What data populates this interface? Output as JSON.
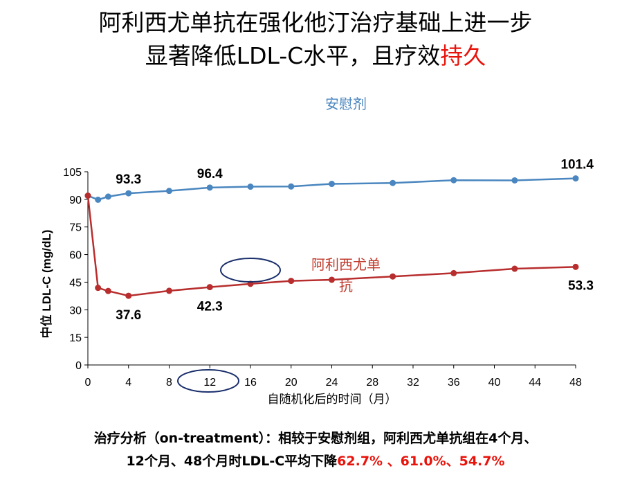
{
  "title": {
    "line1": "阿利西尤单抗在强化他汀治疗基础上进一步",
    "line2_main": "显著降低LDL-C水平，且疗效",
    "line2_highlight": "持久"
  },
  "chart_data": {
    "type": "line",
    "xlabel": "自随机化后的时间（月）",
    "ylabel": "中位 LDL-C (mg/dL)",
    "xlim": [
      0,
      48
    ],
    "ylim": [
      0,
      105
    ],
    "xticks": [
      0,
      4,
      8,
      12,
      16,
      20,
      24,
      28,
      32,
      36,
      40,
      44,
      48
    ],
    "yticks": [
      0,
      15,
      30,
      45,
      60,
      75,
      90,
      105
    ],
    "grid": false,
    "series": [
      {
        "name": "安慰剂",
        "color": "#4a86bf",
        "label_color": "#4a86bf",
        "x": [
          0,
          1,
          2,
          4,
          8,
          12,
          16,
          20,
          24,
          30,
          36,
          42,
          48
        ],
        "values": [
          92,
          89.8,
          91.5,
          93.3,
          94.6,
          96.4,
          96.9,
          97.0,
          98.4,
          98.9,
          100.4,
          100.3,
          101.4
        ]
      },
      {
        "name": "阿利西尤单抗",
        "name_lines": [
          "阿利西尤单",
          "抗"
        ],
        "color": "#b82d2d",
        "label_color": "#c0392b",
        "x": [
          0,
          1,
          2,
          4,
          8,
          12,
          16,
          20,
          24,
          30,
          36,
          42,
          48
        ],
        "values": [
          92,
          41.9,
          40.2,
          37.6,
          40.3,
          42.3,
          44.1,
          45.7,
          46.3,
          48.1,
          49.9,
          52.3,
          53.3
        ]
      }
    ],
    "data_labels": [
      {
        "series": 0,
        "x": 4,
        "text": "93.3"
      },
      {
        "series": 0,
        "x": 12,
        "text": "96.4"
      },
      {
        "series": 0,
        "x": 48,
        "text": "101.4"
      },
      {
        "series": 1,
        "x": 4,
        "text": "37.6"
      },
      {
        "series": 1,
        "x": 12,
        "text": "42.3"
      },
      {
        "series": 1,
        "x": 48,
        "text": "53.3"
      }
    ],
    "highlight_ellipses": [
      {
        "target": "aliro-line-at-16",
        "color": "#1a2f6b"
      },
      {
        "target": "x-tick-12",
        "color": "#1a2f6b"
      }
    ]
  },
  "analysis": {
    "line1": "治疗分析（on-treatment）：相较于安慰剂组，阿利西尤单抗组在4个月、",
    "line2_prefix": "12个月、48个月时LDL-C平均下降",
    "line2_values": "62.7% 、61.0%、54.7%"
  }
}
